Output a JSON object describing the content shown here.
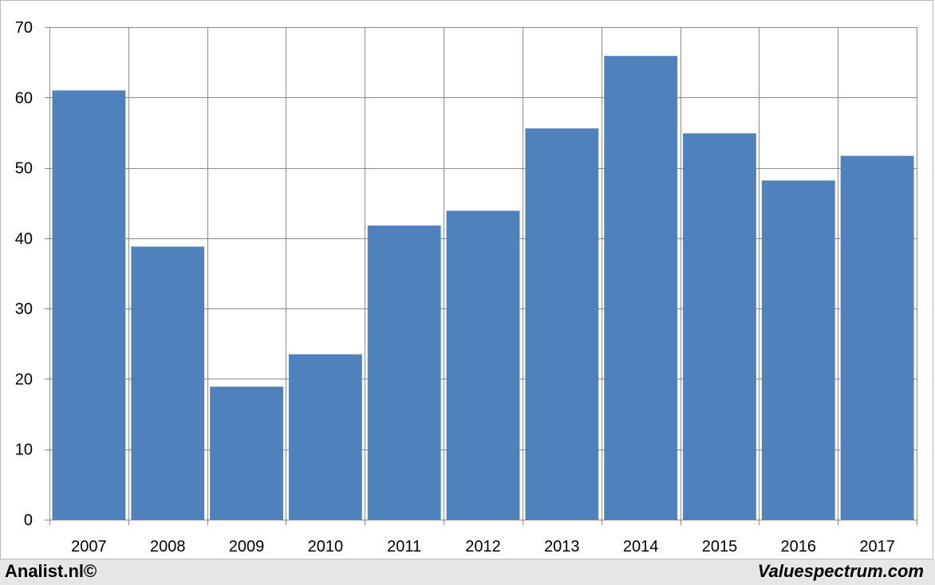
{
  "chart_data": {
    "type": "bar",
    "categories": [
      "2007",
      "2008",
      "2009",
      "2010",
      "2011",
      "2012",
      "2013",
      "2014",
      "2015",
      "2016",
      "2017"
    ],
    "values": [
      61.0,
      38.8,
      18.9,
      23.5,
      41.8,
      43.9,
      55.6,
      65.9,
      54.9,
      48.2,
      51.7
    ],
    "title": "",
    "xlabel": "",
    "ylabel": "",
    "ylim": [
      0,
      70
    ],
    "yticks": [
      "0",
      "10",
      "20",
      "30",
      "40",
      "50",
      "60",
      "70"
    ],
    "grid": true,
    "bar_color": "#4f81bd"
  },
  "footer": {
    "left": "Analist.nl©",
    "right": "Valuespectrum.com"
  }
}
